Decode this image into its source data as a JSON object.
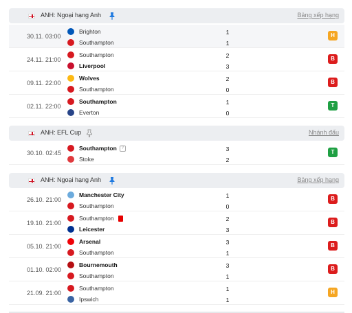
{
  "sections": [
    {
      "competition": "ANH: Ngoại hạng Anh",
      "link": "Bảng xếp hạng",
      "pin_active": true,
      "matches": [
        {
          "date": "30.11. 03:00",
          "home": {
            "name": "Brighton",
            "crest": "brighton-crest-icon",
            "color": "#0057b8",
            "bold": false
          },
          "away": {
            "name": "Southampton",
            "crest": "southampton-crest-icon",
            "color": "#d71920",
            "bold": false
          },
          "home_score": "1",
          "away_score": "1",
          "result": "H",
          "result_color": "#f5a623"
        },
        {
          "date": "24.11. 21:00",
          "home": {
            "name": "Southampton",
            "crest": "southampton-crest-icon",
            "color": "#d71920",
            "bold": false
          },
          "away": {
            "name": "Liverpool",
            "crest": "liverpool-crest-icon",
            "color": "#c8102e",
            "bold": true
          },
          "home_score": "2",
          "away_score": "3",
          "result": "B",
          "result_color": "#dc1d1d"
        },
        {
          "date": "09.11. 22:00",
          "home": {
            "name": "Wolves",
            "crest": "wolves-crest-icon",
            "color": "#fdb913",
            "bold": true
          },
          "away": {
            "name": "Southampton",
            "crest": "southampton-crest-icon",
            "color": "#d71920",
            "bold": false
          },
          "home_score": "2",
          "away_score": "0",
          "result": "B",
          "result_color": "#dc1d1d"
        },
        {
          "date": "02.11. 22:00",
          "home": {
            "name": "Southampton",
            "crest": "southampton-crest-icon",
            "color": "#d71920",
            "bold": true
          },
          "away": {
            "name": "Everton",
            "crest": "everton-crest-icon",
            "color": "#274488",
            "bold": false
          },
          "home_score": "1",
          "away_score": "0",
          "result": "T",
          "result_color": "#1fa043"
        }
      ]
    },
    {
      "competition": "ANH: EFL Cup",
      "link": "Nhánh đấu",
      "pin_active": false,
      "matches": [
        {
          "date": "30.10. 02:45",
          "home": {
            "name": "Southampton",
            "crest": "southampton-crest-icon",
            "color": "#d71920",
            "bold": true
          },
          "away": {
            "name": "Stoke",
            "crest": "stoke-crest-icon",
            "color": "#e03a3e",
            "bold": false
          },
          "home_score": "3",
          "away_score": "2",
          "result": "T",
          "result_color": "#1fa043",
          "home_info_icon": true
        }
      ]
    },
    {
      "competition": "ANH: Ngoại hạng Anh",
      "link": "Bảng xếp hạng",
      "pin_active": true,
      "matches": [
        {
          "date": "26.10. 21:00",
          "home": {
            "name": "Manchester City",
            "crest": "manchester-city-crest-icon",
            "color": "#6cabdd",
            "bold": true
          },
          "away": {
            "name": "Southampton",
            "crest": "southampton-crest-icon",
            "color": "#d71920",
            "bold": false
          },
          "home_score": "1",
          "away_score": "0",
          "result": "B",
          "result_color": "#dc1d1d"
        },
        {
          "date": "19.10. 21:00",
          "home": {
            "name": "Southampton",
            "crest": "southampton-crest-icon",
            "color": "#d71920",
            "bold": false
          },
          "away": {
            "name": "Leicester",
            "crest": "leicester-crest-icon",
            "color": "#003090",
            "bold": true
          },
          "home_score": "2",
          "away_score": "3",
          "result": "B",
          "result_color": "#dc1d1d",
          "home_red_card": true
        },
        {
          "date": "05.10. 21:00",
          "home": {
            "name": "Arsenal",
            "crest": "arsenal-crest-icon",
            "color": "#ef0107",
            "bold": true
          },
          "away": {
            "name": "Southampton",
            "crest": "southampton-crest-icon",
            "color": "#d71920",
            "bold": false
          },
          "home_score": "3",
          "away_score": "1",
          "result": "B",
          "result_color": "#dc1d1d"
        },
        {
          "date": "01.10. 02:00",
          "home": {
            "name": "Bournemouth",
            "crest": "bournemouth-crest-icon",
            "color": "#b50e12",
            "bold": true
          },
          "away": {
            "name": "Southampton",
            "crest": "southampton-crest-icon",
            "color": "#d71920",
            "bold": false
          },
          "home_score": "3",
          "away_score": "1",
          "result": "B",
          "result_color": "#dc1d1d"
        },
        {
          "date": "21.09. 21:00",
          "home": {
            "name": "Southampton",
            "crest": "southampton-crest-icon",
            "color": "#d71920",
            "bold": false
          },
          "away": {
            "name": "Ipswich",
            "crest": "ipswich-crest-icon",
            "color": "#3a64a3",
            "bold": false
          },
          "home_score": "1",
          "away_score": "1",
          "result": "H",
          "result_color": "#f5a623"
        }
      ]
    }
  ]
}
